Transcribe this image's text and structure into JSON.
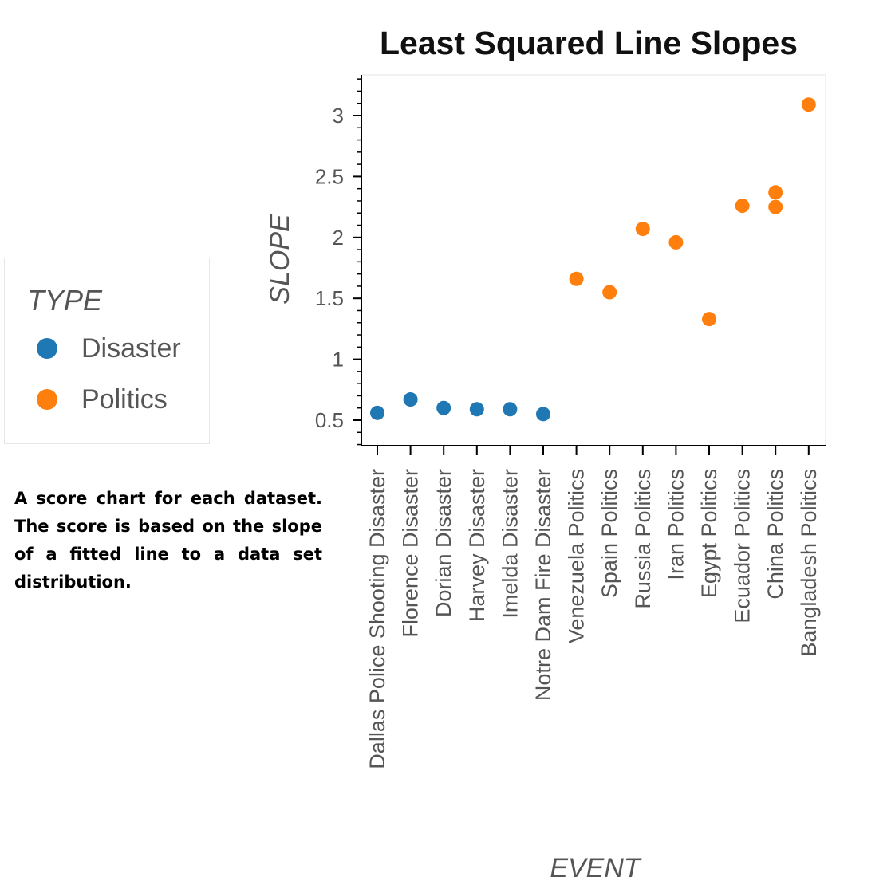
{
  "caption": "A score chart for each dataset. The score is based on the slope of a fitted line to a data set distribution.",
  "legend": {
    "title": "TYPE",
    "items": [
      {
        "label": "Disaster",
        "color": "#1f77b4"
      },
      {
        "label": "Politics",
        "color": "#ff7f0e"
      }
    ]
  },
  "chart_data": {
    "type": "scatter",
    "title": "Least Squared Line Slopes",
    "xlabel": "EVENT",
    "ylabel": "SLOPE",
    "ylim": [
      0.3,
      3.3
    ],
    "yticks": [
      0.5,
      1,
      1.5,
      2,
      2.5,
      3
    ],
    "ytick_labels": [
      "0.5",
      "1",
      "1.5",
      "2",
      "2.5",
      "3"
    ],
    "grid": false,
    "legend_position": "left",
    "categories": [
      "Dallas Police Shooting Disaster",
      "Florence Disaster",
      "Dorian Disaster",
      "Harvey Disaster",
      "Imelda Disaster",
      "Notre Dam Fire Disaster",
      "Venezuela Politics",
      "Spain Politics",
      "Russia Politics",
      "Iran Politics",
      "Egypt Politics",
      "Ecuador Politics",
      "China Politics",
      "Bangladesh Politics"
    ],
    "series": [
      {
        "name": "Disaster",
        "color": "#1f77b4",
        "points": [
          {
            "x": "Dallas Police Shooting Disaster",
            "y": 0.56
          },
          {
            "x": "Florence Disaster",
            "y": 0.67
          },
          {
            "x": "Dorian Disaster",
            "y": 0.6
          },
          {
            "x": "Harvey Disaster",
            "y": 0.59
          },
          {
            "x": "Imelda Disaster",
            "y": 0.59
          },
          {
            "x": "Notre Dam Fire Disaster",
            "y": 0.55
          }
        ]
      },
      {
        "name": "Politics",
        "color": "#ff7f0e",
        "points": [
          {
            "x": "Venezuela Politics",
            "y": 1.66
          },
          {
            "x": "Spain Politics",
            "y": 1.55
          },
          {
            "x": "Russia Politics",
            "y": 2.07
          },
          {
            "x": "Iran Politics",
            "y": 1.96
          },
          {
            "x": "Egypt Politics",
            "y": 1.33
          },
          {
            "x": "Ecuador Politics",
            "y": 2.26
          },
          {
            "x": "China Politics",
            "y": 2.37
          },
          {
            "x": "China Politics",
            "y": 2.25
          },
          {
            "x": "Bangladesh Politics",
            "y": 3.09
          }
        ]
      }
    ]
  }
}
